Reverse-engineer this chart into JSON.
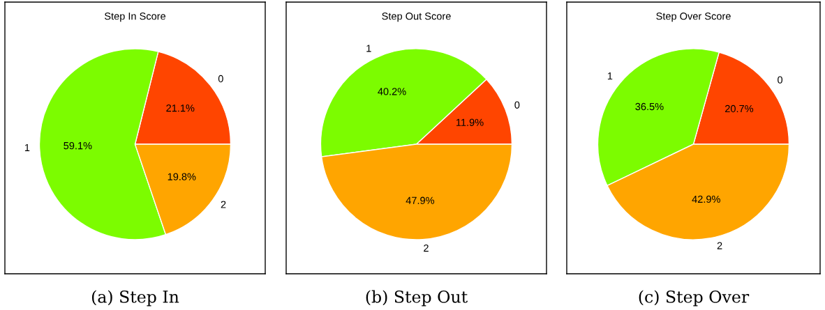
{
  "chart_data": [
    {
      "type": "pie",
      "title": "Step In Score",
      "categories": [
        "0",
        "1",
        "2"
      ],
      "values": [
        21.1,
        59.1,
        19.8
      ],
      "colors": [
        "#ff4500",
        "#7cfc00",
        "#ffa500"
      ],
      "value_labels": [
        "21.1%",
        "59.1%",
        "19.8%"
      ],
      "annotations": [
        "(a) Step In"
      ]
    },
    {
      "type": "pie",
      "title": "Step Out Score",
      "categories": [
        "0",
        "1",
        "2"
      ],
      "values": [
        11.9,
        40.2,
        47.9
      ],
      "colors": [
        "#ff4500",
        "#7cfc00",
        "#ffa500"
      ],
      "value_labels": [
        "11.9%",
        "40.2%",
        "47.9%"
      ],
      "annotations": [
        "(b) Step Out"
      ]
    },
    {
      "type": "pie",
      "title": "Step Over Score",
      "categories": [
        "0",
        "1",
        "2"
      ],
      "values": [
        20.7,
        36.5,
        42.9
      ],
      "colors": [
        "#ff4500",
        "#7cfc00",
        "#ffa500"
      ],
      "value_labels": [
        "20.7%",
        "36.5%",
        "42.9%"
      ],
      "annotations": [
        "(c) Step Over"
      ]
    }
  ]
}
